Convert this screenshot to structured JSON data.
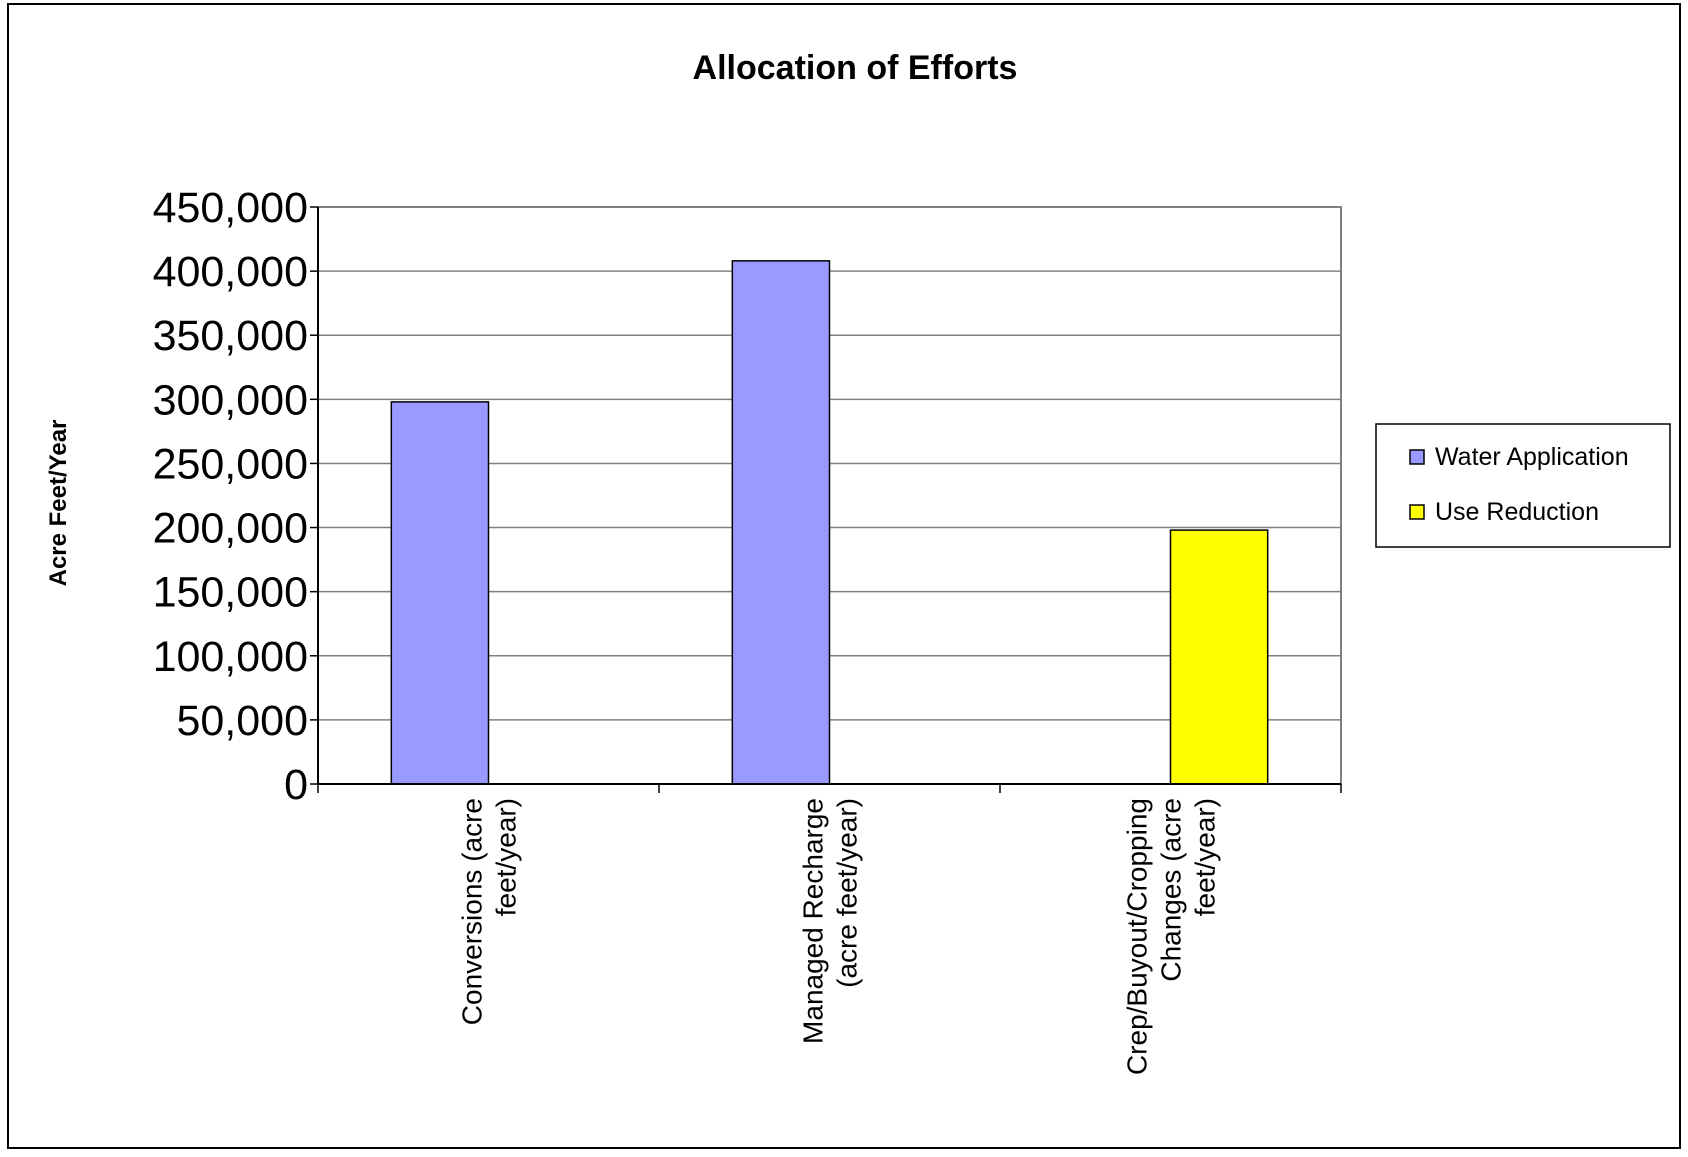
{
  "chart_data": {
    "type": "bar",
    "title": "Allocation of Efforts",
    "xlabel": "",
    "ylabel": "Acre Feet/Year",
    "ylim": [
      0,
      450000
    ],
    "yticks": [
      "450,000",
      "400,000",
      "350,000",
      "300,000",
      "250,000",
      "200,000",
      "150,000",
      "100,000",
      "50,000",
      "0"
    ],
    "ytick_values": [
      450000,
      400000,
      350000,
      300000,
      250000,
      200000,
      150000,
      100000,
      50000,
      0
    ],
    "grid": true,
    "legend_position": "right",
    "categories": [
      [
        "Conversions (acre",
        "feet/year)"
      ],
      [
        "Managed Recharge",
        "(acre feet/year)"
      ],
      [
        "Crep/Buyout/Cropping",
        "Changes (acre",
        "feet/year)"
      ]
    ],
    "series": [
      {
        "name": "Water Application",
        "color": "#9999ff",
        "values": [
          298000,
          408000,
          0
        ]
      },
      {
        "name": "Use Reduction",
        "color": "#ffff00",
        "values": [
          0,
          0,
          198000
        ]
      }
    ],
    "plot_area_color": "#ffffff"
  }
}
